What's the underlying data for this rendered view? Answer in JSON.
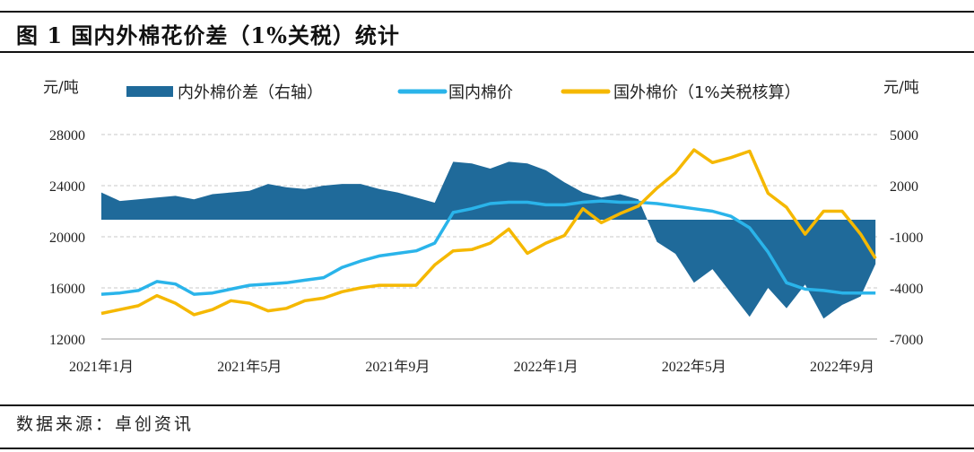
{
  "title": "图 1 国内外棉花价差（1%关税）统计",
  "source": "数据来源：卓创资讯",
  "chart_data": {
    "type": "line",
    "title": "图 1 国内外棉花价差（1%关税）统计",
    "left_unit": "元/吨",
    "right_unit": "元/吨",
    "ylim_left": [
      12000,
      28000
    ],
    "ylim_right": [
      -7000,
      5000
    ],
    "left_ticks": [
      "12000",
      "16000",
      "20000",
      "24000",
      "28000"
    ],
    "right_ticks": [
      "-7000",
      "-4000",
      "-1000",
      "2000",
      "5000"
    ],
    "x_ticks": [
      {
        "date": "2021-01-01",
        "label": "2021年1月"
      },
      {
        "date": "2021-05-01",
        "label": "2021年5月"
      },
      {
        "date": "2021-09-01",
        "label": "2021年9月"
      },
      {
        "date": "2022-01-01",
        "label": "2022年1月"
      },
      {
        "date": "2022-05-01",
        "label": "2022年5月"
      },
      {
        "date": "2022-09-01",
        "label": "2022年9月"
      }
    ],
    "grid": "horizontal dashed",
    "legend_position": "top",
    "x": [
      "2021-01-01",
      "2021-01-16",
      "2021-02-01",
      "2021-02-16",
      "2021-03-01",
      "2021-03-16",
      "2021-04-01",
      "2021-04-16",
      "2021-05-01",
      "2021-05-16",
      "2021-06-01",
      "2021-06-16",
      "2021-07-01",
      "2021-07-16",
      "2021-08-01",
      "2021-08-16",
      "2021-09-01",
      "2021-09-16",
      "2021-10-01",
      "2021-10-16",
      "2021-11-01",
      "2021-11-16",
      "2021-12-01",
      "2021-12-16",
      "2022-01-01",
      "2022-01-16",
      "2022-02-01",
      "2022-02-16",
      "2022-03-01",
      "2022-03-16",
      "2022-04-01",
      "2022-04-16",
      "2022-05-01",
      "2022-05-16",
      "2022-06-01",
      "2022-06-16",
      "2022-07-01",
      "2022-07-16",
      "2022-08-01",
      "2022-08-16",
      "2022-09-01",
      "2022-09-16",
      "2022-09-28"
    ],
    "series": [
      {
        "name": "内外棉价差（右轴）",
        "type": "area",
        "axis": "right",
        "color": "#1f6a9a",
        "values": [
          1600,
          1100,
          1200,
          1300,
          1400,
          1200,
          1500,
          1600,
          1700,
          2100,
          1900,
          1800,
          2000,
          2100,
          2100,
          1800,
          1600,
          1300,
          1000,
          3400,
          3300,
          3000,
          3400,
          3300,
          2900,
          2200,
          1600,
          1300,
          1500,
          1200,
          -1300,
          -2000,
          -3700,
          -2900,
          -4300,
          -5700,
          -4000,
          -5200,
          -3800,
          -5800,
          -5000,
          -4500,
          -2600
        ]
      },
      {
        "name": "国内棉价",
        "type": "line",
        "axis": "left",
        "color": "#2ab4ea",
        "values": [
          15500,
          15600,
          15800,
          16500,
          16300,
          15500,
          15600,
          15900,
          16200,
          16300,
          16400,
          16600,
          16800,
          17600,
          18100,
          18500,
          18700,
          18900,
          19500,
          21900,
          22200,
          22600,
          22700,
          22700,
          22500,
          22500,
          22700,
          22800,
          22700,
          22700,
          22600,
          22400,
          22200,
          22000,
          21600,
          20700,
          18800,
          16400,
          15900,
          15800,
          15600,
          15600,
          15600
        ]
      },
      {
        "name": "国外棉价（1%关税核算）",
        "type": "line",
        "axis": "left",
        "color": "#f5b800",
        "values": [
          14000,
          14300,
          14600,
          15400,
          14800,
          13900,
          14300,
          15000,
          14800,
          14200,
          14400,
          15000,
          15200,
          15700,
          16000,
          16200,
          16200,
          16200,
          17800,
          18900,
          19000,
          19500,
          20600,
          18700,
          19500,
          20100,
          22200,
          21100,
          21800,
          22400,
          23800,
          25000,
          26800,
          25800,
          26200,
          26700,
          23400,
          22300,
          20200,
          22000,
          22000,
          20200,
          18300
        ]
      }
    ]
  }
}
